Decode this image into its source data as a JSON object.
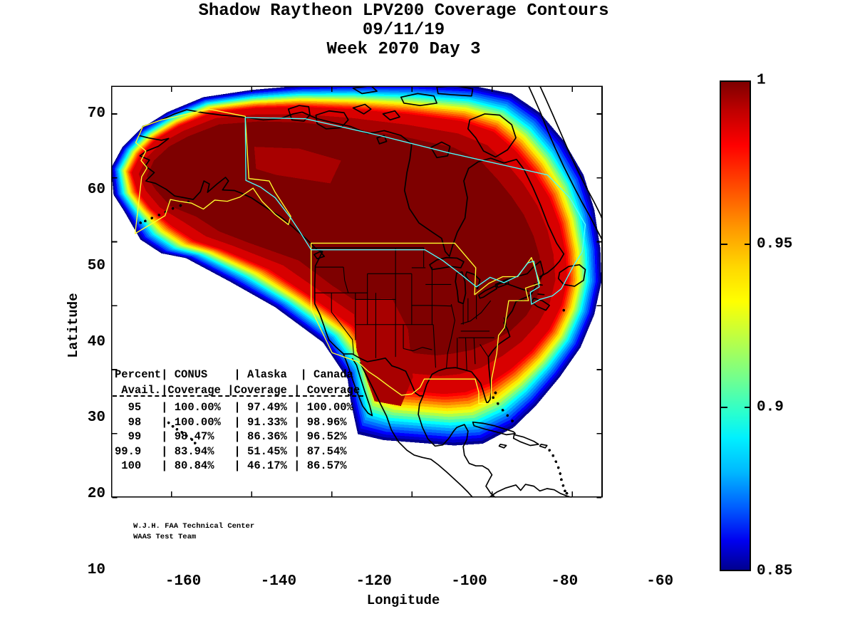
{
  "title": {
    "line1": "Shadow Raytheon LPV200 Coverage Contours",
    "line2": "09/11/19",
    "line3": "Week 2070 Day 3"
  },
  "axes": {
    "xlabel": "Longitude",
    "ylabel": "Latitude",
    "xlim": [
      -175.1,
      -52.4
    ],
    "ylim": [
      10,
      74.4
    ],
    "xticks": [
      -160,
      -140,
      -120,
      -100,
      -80,
      -60
    ],
    "yticks": [
      70,
      60,
      50,
      40,
      30,
      20,
      10
    ],
    "xticklabels": [
      "-160",
      "-140",
      "-120",
      "-100",
      "-80",
      "-60"
    ],
    "yticklabels": [
      "70",
      "60",
      "50",
      "40",
      "30",
      "20",
      "10"
    ]
  },
  "colorbar": {
    "min": 0.85,
    "max": 1.0,
    "labels": [
      "1",
      "0.95",
      "0.9",
      "0.85"
    ],
    "label_values": [
      1.0,
      0.95,
      0.9,
      0.85
    ],
    "tick_values": [
      0.95,
      0.9
    ]
  },
  "table": {
    "header_lines": [
      "Percent| CONUS    | Alaska  | Canada",
      " Avail.|Coverage |Coverage | Coverage"
    ],
    "separator": "dashed",
    "row_lines": [
      "  95   | 100.00%  | 97.49% | 100.00%",
      "  98   | 100.00%  | 91.33% | 98.96%",
      "  99   | 98.47%   | 86.36% | 96.52%",
      "99.9   | 83.94%   | 51.45% | 87.54%",
      " 100   | 80.84%   | 46.17% | 86.57%"
    ]
  },
  "credit": {
    "line1": "W.J.H. FAA Technical Center",
    "line2": "WAAS Test Team"
  },
  "colors": {
    "conus_alaska_boundary": "#FFFF2E",
    "canada_boundary": "#4DFFFF",
    "coastline": "#000000",
    "core_dark_red": "#7E0000",
    "inner_dark_red": "#A80000",
    "red_fill": "#D80000",
    "rainbow_bands": [
      "#00008F",
      "#0000C8",
      "#0000FF",
      "#0040FF",
      "#0070FF",
      "#00A0FF",
      "#00D0FF",
      "#00FFFF",
      "#40FFB8",
      "#78FF88",
      "#B0FF48",
      "#E8FF18",
      "#FFE800",
      "#FFB800",
      "#FF8800",
      "#FF5800",
      "#FF2800",
      "#FF0000"
    ]
  },
  "chart_data": {
    "type": "heatmap",
    "subtype": "filled-contour-coverage-map",
    "title": "Shadow Raytheon LPV200 Coverage Contours",
    "subtitle": [
      "09/11/19",
      "Week 2070 Day 3"
    ],
    "xlabel": "Longitude",
    "ylabel": "Latitude",
    "xlim": [
      -175.1,
      -52.4
    ],
    "ylim": [
      10,
      74.4
    ],
    "xticks": [
      -160,
      -140,
      -120,
      -100,
      -80,
      -60
    ],
    "yticks": [
      10,
      20,
      30,
      40,
      50,
      60,
      70
    ],
    "colorbar": {
      "colormap": "jet",
      "min": 0.85,
      "max": 1.0,
      "ticks": [
        0.85,
        0.9,
        0.95,
        1.0
      ],
      "position": "right"
    },
    "description": "Availability contours over North America; dark red core (availability 1) covers CONUS, Canada and Alaska, with jet-colormap fringe bands down to 0.85 at the oceanic edges.",
    "coverage_table": {
      "columns": [
        "Percent Avail.",
        "CONUS Coverage",
        "Alaska Coverage",
        "Canada Coverage"
      ],
      "rows": [
        [
          "95",
          "100.00%",
          "97.49%",
          "100.00%"
        ],
        [
          "98",
          "100.00%",
          "91.33%",
          "98.96%"
        ],
        [
          "99",
          "98.47%",
          "86.36%",
          "96.52%"
        ],
        [
          "99.9",
          "83.94%",
          "51.45%",
          "87.54%"
        ],
        [
          "100",
          "80.84%",
          "46.17%",
          "86.57%"
        ]
      ]
    },
    "annotations": [
      "W.J.H. FAA Technical Center",
      "WAAS Test Team"
    ],
    "legend": "none",
    "grid": false
  }
}
